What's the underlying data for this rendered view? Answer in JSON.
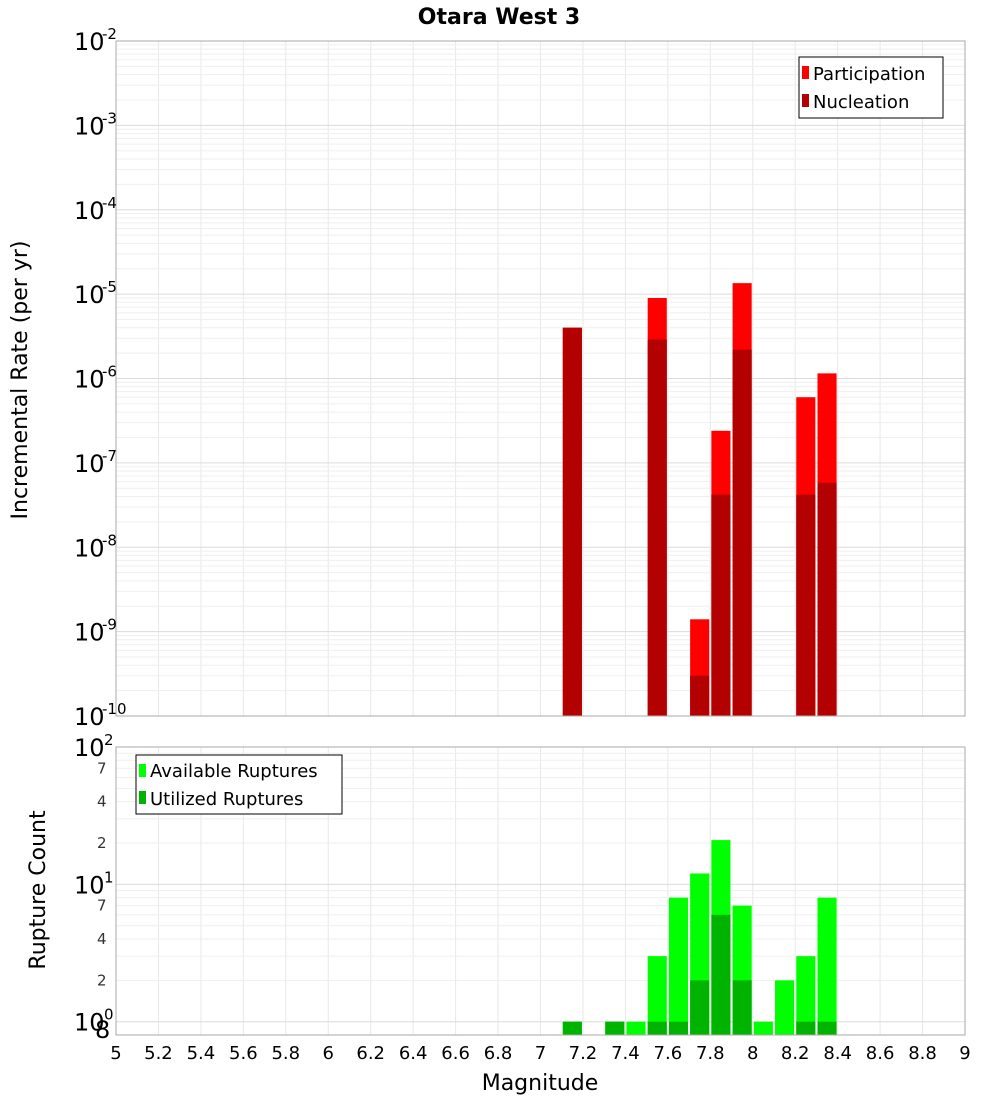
{
  "chart_data": [
    {
      "type": "bar",
      "title": "Otara West 3",
      "xlabel": "",
      "ylabel": "Incremental Rate (per yr)",
      "yscale": "log",
      "xlim": [
        5,
        9
      ],
      "ylim": [
        1e-10,
        0.01
      ],
      "y_tick_labels": [
        {
          "base": "10",
          "exp": "-10"
        },
        {
          "base": "10",
          "exp": "-9"
        },
        {
          "base": "10",
          "exp": "-8"
        },
        {
          "base": "10",
          "exp": "-7"
        },
        {
          "base": "10",
          "exp": "-6"
        },
        {
          "base": "10",
          "exp": "-5"
        },
        {
          "base": "10",
          "exp": "-4"
        },
        {
          "base": "10",
          "exp": "-3"
        },
        {
          "base": "10",
          "exp": "-2"
        }
      ],
      "grid": true,
      "legend_position": "top-right",
      "bar_width": 0.09,
      "series": [
        {
          "name": "Participation",
          "color": "#ff0000",
          "x": [
            7.15,
            7.55,
            7.75,
            7.85,
            7.95,
            8.25,
            8.35
          ],
          "values": [
            4e-06,
            9e-06,
            1.4e-09,
            2.4e-07,
            1.35e-05,
            6e-07,
            1.15e-06
          ]
        },
        {
          "name": "Nucleation",
          "color": "#b30000",
          "x": [
            7.15,
            7.55,
            7.75,
            7.85,
            7.95,
            8.25,
            8.35
          ],
          "values": [
            4e-06,
            2.9e-06,
            3e-10,
            4.2e-08,
            2.2e-06,
            4.2e-08,
            5.8e-08
          ]
        }
      ]
    },
    {
      "type": "bar",
      "title": "",
      "xlabel": "Magnitude",
      "ylabel": "Rupture Count",
      "yscale": "log",
      "xlim": [
        5,
        9
      ],
      "ylim": [
        0.8,
        100
      ],
      "x_tick_labels": [
        "5",
        "5.2",
        "5.4",
        "5.6",
        "5.8",
        "6",
        "6.2",
        "6.4",
        "6.6",
        "6.8",
        "7",
        "7.2",
        "7.4",
        "7.6",
        "7.8",
        "8",
        "8.2",
        "8.4",
        "8.6",
        "8.8",
        "9"
      ],
      "y_major_labels": [
        {
          "value": 1,
          "base": "10",
          "exp": "0"
        },
        {
          "value": 10,
          "base": "10",
          "exp": "1"
        },
        {
          "value": 100,
          "base": "10",
          "exp": "2"
        }
      ],
      "y_minor_labels": [
        {
          "value": 0.8,
          "label": "8"
        },
        {
          "value": 2,
          "label": "2"
        },
        {
          "value": 4,
          "label": "4"
        },
        {
          "value": 7,
          "label": "7"
        },
        {
          "value": 20,
          "label": "2"
        },
        {
          "value": 40,
          "label": "4"
        },
        {
          "value": 70,
          "label": "7"
        }
      ],
      "grid": true,
      "legend_position": "top-left",
      "bar_width": 0.09,
      "series": [
        {
          "name": "Available Ruptures",
          "color": "#00ff00",
          "x": [
            7.15,
            7.35,
            7.45,
            7.55,
            7.65,
            7.75,
            7.85,
            7.95,
            8.05,
            8.15,
            8.25,
            8.35
          ],
          "values": [
            1,
            1,
            1,
            3,
            8,
            12,
            21,
            7,
            1,
            2,
            3,
            8
          ]
        },
        {
          "name": "Utilized Ruptures",
          "color": "#00b300",
          "x": [
            7.15,
            7.35,
            7.55,
            7.65,
            7.75,
            7.85,
            7.95,
            8.25,
            8.35
          ],
          "values": [
            1,
            1,
            1,
            1,
            2,
            6,
            2,
            1,
            1
          ]
        }
      ]
    }
  ]
}
